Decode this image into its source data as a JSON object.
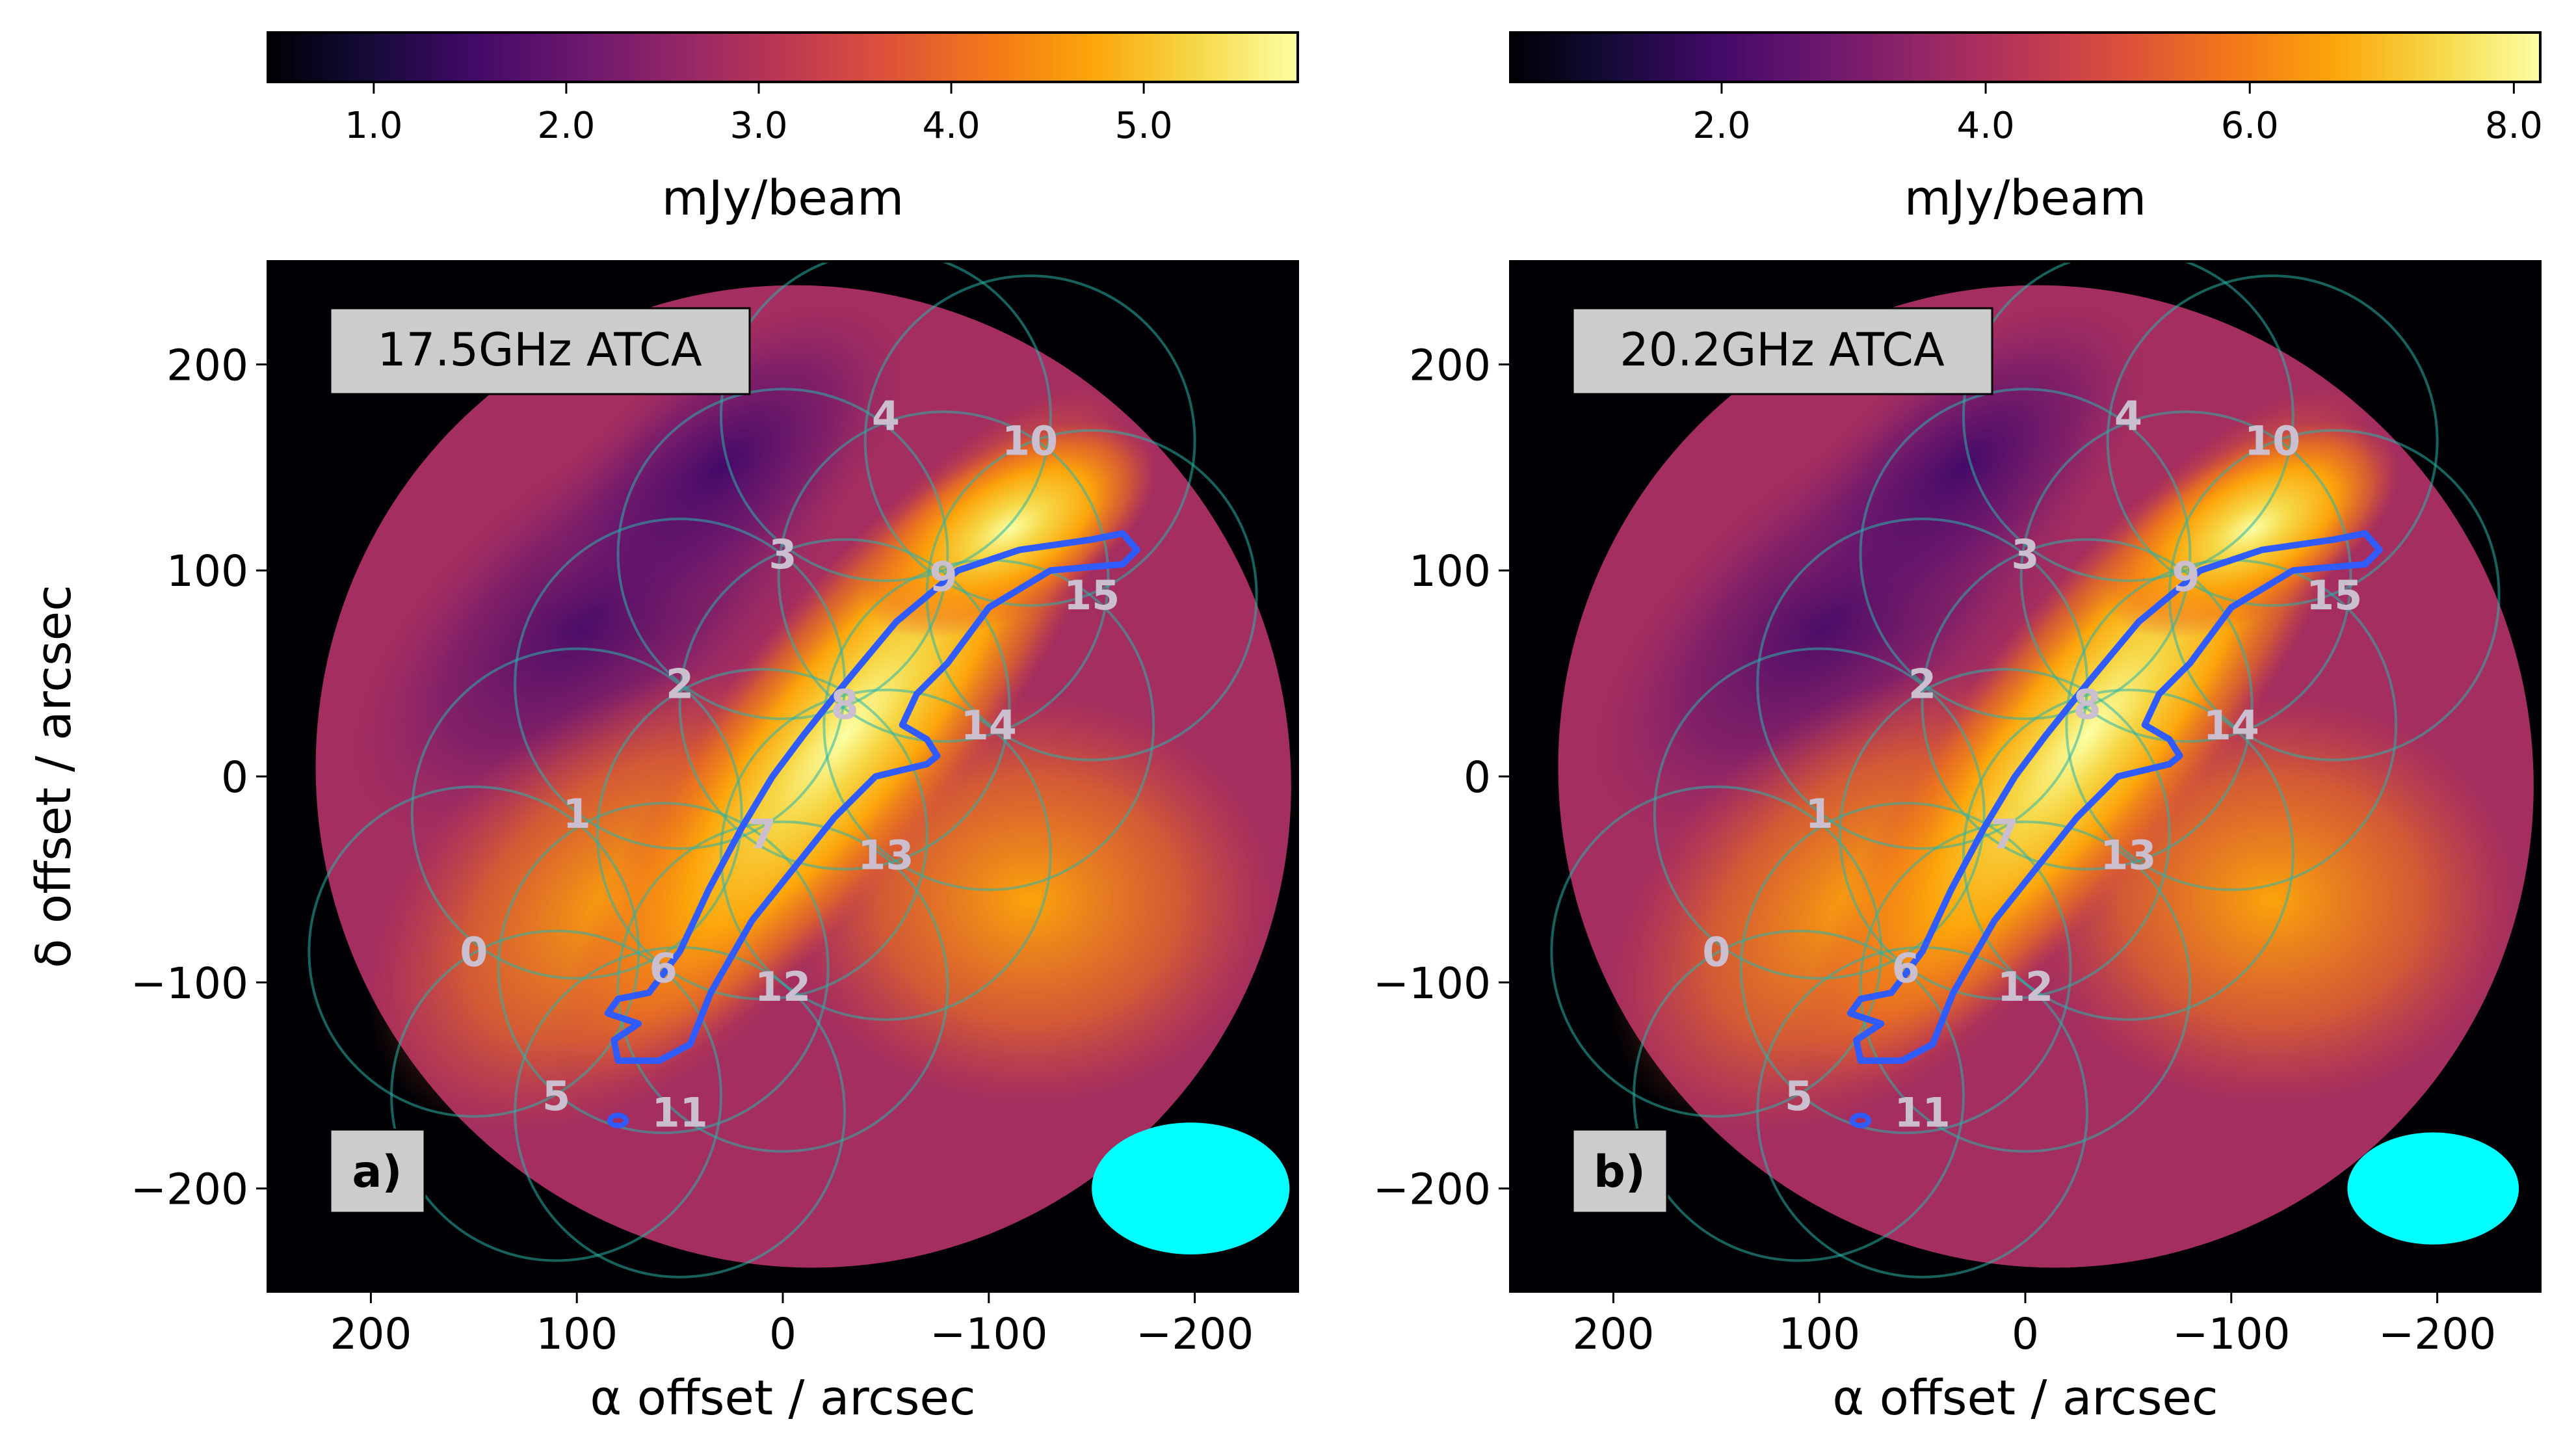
{
  "chart_data": [
    {
      "type": "heatmap",
      "panel_label": "a)",
      "title_box": "17.5GHz ATCA",
      "xlabel": "α offset / arcsec",
      "ylabel": "δ  offset / arcsec",
      "xlim": [
        250,
        -250
      ],
      "ylim": [
        -250,
        250
      ],
      "xticks": [
        200,
        100,
        0,
        -100,
        -200
      ],
      "yticks": [
        200,
        100,
        0,
        -100,
        -200
      ],
      "xtick_labels": [
        "200",
        "100",
        "0",
        "−100",
        "−200"
      ],
      "ytick_labels": [
        "200",
        "100",
        "0",
        "−100",
        "−200"
      ],
      "colorbar": {
        "label": "mJy/beam",
        "range": [
          0.45,
          5.8
        ],
        "ticks": [
          1.0,
          2.0,
          3.0,
          4.0,
          5.0
        ],
        "tick_labels": [
          "1.0",
          "2.0",
          "3.0",
          "4.0",
          "5.0"
        ],
        "colormap": "inferno"
      },
      "beam": {
        "x": -198,
        "y": -200,
        "major": 30,
        "minor": 20,
        "color": "#00ffff"
      },
      "pointing_radius": 80,
      "pointings": [
        {
          "id": "0",
          "x": 150,
          "y": -85
        },
        {
          "id": "1",
          "x": 100,
          "y": -18
        },
        {
          "id": "2",
          "x": 50,
          "y": 45
        },
        {
          "id": "3",
          "x": 0,
          "y": 108
        },
        {
          "id": "4",
          "x": -50,
          "y": 175
        },
        {
          "id": "5",
          "x": 110,
          "y": -155
        },
        {
          "id": "6",
          "x": 58,
          "y": -93
        },
        {
          "id": "7",
          "x": 10,
          "y": -28
        },
        {
          "id": "8",
          "x": -30,
          "y": 35
        },
        {
          "id": "9",
          "x": -78,
          "y": 97
        },
        {
          "id": "10",
          "x": -120,
          "y": 163
        },
        {
          "id": "11",
          "x": 50,
          "y": -163
        },
        {
          "id": "12",
          "x": 0,
          "y": -102
        },
        {
          "id": "13",
          "x": -50,
          "y": -38
        },
        {
          "id": "14",
          "x": -100,
          "y": 25
        },
        {
          "id": "15",
          "x": -150,
          "y": 88
        }
      ]
    },
    {
      "type": "heatmap",
      "panel_label": "b)",
      "title_box": "20.2GHz ATCA",
      "xlabel": "α offset / arcsec",
      "ylabel": "",
      "xlim": [
        250,
        -250
      ],
      "ylim": [
        -250,
        250
      ],
      "xticks": [
        200,
        100,
        0,
        -100,
        -200
      ],
      "yticks": [
        200,
        100,
        0,
        -100,
        -200
      ],
      "xtick_labels": [
        "200",
        "100",
        "0",
        "−100",
        "−200"
      ],
      "ytick_labels": [
        "200",
        "100",
        "0",
        "−100",
        "−200"
      ],
      "colorbar": {
        "label": "mJy/beam",
        "range": [
          0.4,
          8.2
        ],
        "ticks": [
          2.0,
          4.0,
          6.0,
          8.0
        ],
        "tick_labels": [
          "2.0",
          "4.0",
          "6.0",
          "8.0"
        ],
        "colormap": "inferno"
      },
      "beam": {
        "x": -198,
        "y": -200,
        "major": 26,
        "minor": 17,
        "color": "#00ffff"
      },
      "pointing_radius": 80,
      "pointings": [
        {
          "id": "0",
          "x": 150,
          "y": -85
        },
        {
          "id": "1",
          "x": 100,
          "y": -18
        },
        {
          "id": "2",
          "x": 50,
          "y": 45
        },
        {
          "id": "3",
          "x": 0,
          "y": 108
        },
        {
          "id": "4",
          "x": -50,
          "y": 175
        },
        {
          "id": "5",
          "x": 110,
          "y": -155
        },
        {
          "id": "6",
          "x": 58,
          "y": -93
        },
        {
          "id": "7",
          "x": 10,
          "y": -28
        },
        {
          "id": "8",
          "x": -30,
          "y": 35
        },
        {
          "id": "9",
          "x": -78,
          "y": 97
        },
        {
          "id": "10",
          "x": -120,
          "y": 163
        },
        {
          "id": "11",
          "x": 50,
          "y": -163
        },
        {
          "id": "12",
          "x": 0,
          "y": -102
        },
        {
          "id": "13",
          "x": -50,
          "y": -38
        },
        {
          "id": "14",
          "x": -100,
          "y": 25
        },
        {
          "id": "15",
          "x": -150,
          "y": 88
        }
      ]
    }
  ],
  "contour": {
    "color": "#2f5bff",
    "points": [
      [
        80,
        -108
      ],
      [
        65,
        -105
      ],
      [
        50,
        -85
      ],
      [
        36,
        -55
      ],
      [
        20,
        -25
      ],
      [
        5,
        0
      ],
      [
        -10,
        20
      ],
      [
        -30,
        45
      ],
      [
        -55,
        75
      ],
      [
        -85,
        100
      ],
      [
        -115,
        110
      ],
      [
        -150,
        115
      ],
      [
        -165,
        118
      ],
      [
        -172,
        110
      ],
      [
        -165,
        103
      ],
      [
        -130,
        100
      ],
      [
        -100,
        82
      ],
      [
        -80,
        55
      ],
      [
        -65,
        40
      ],
      [
        -58,
        25
      ],
      [
        -70,
        18
      ],
      [
        -75,
        10
      ],
      [
        -70,
        6
      ],
      [
        -45,
        0
      ],
      [
        -25,
        -20
      ],
      [
        -5,
        -45
      ],
      [
        15,
        -70
      ],
      [
        35,
        -105
      ],
      [
        45,
        -130
      ],
      [
        60,
        -138
      ],
      [
        80,
        -138
      ],
      [
        82,
        -128
      ],
      [
        70,
        -120
      ],
      [
        85,
        -115
      ]
    ],
    "blob": {
      "x": 80,
      "y": -167
    }
  }
}
